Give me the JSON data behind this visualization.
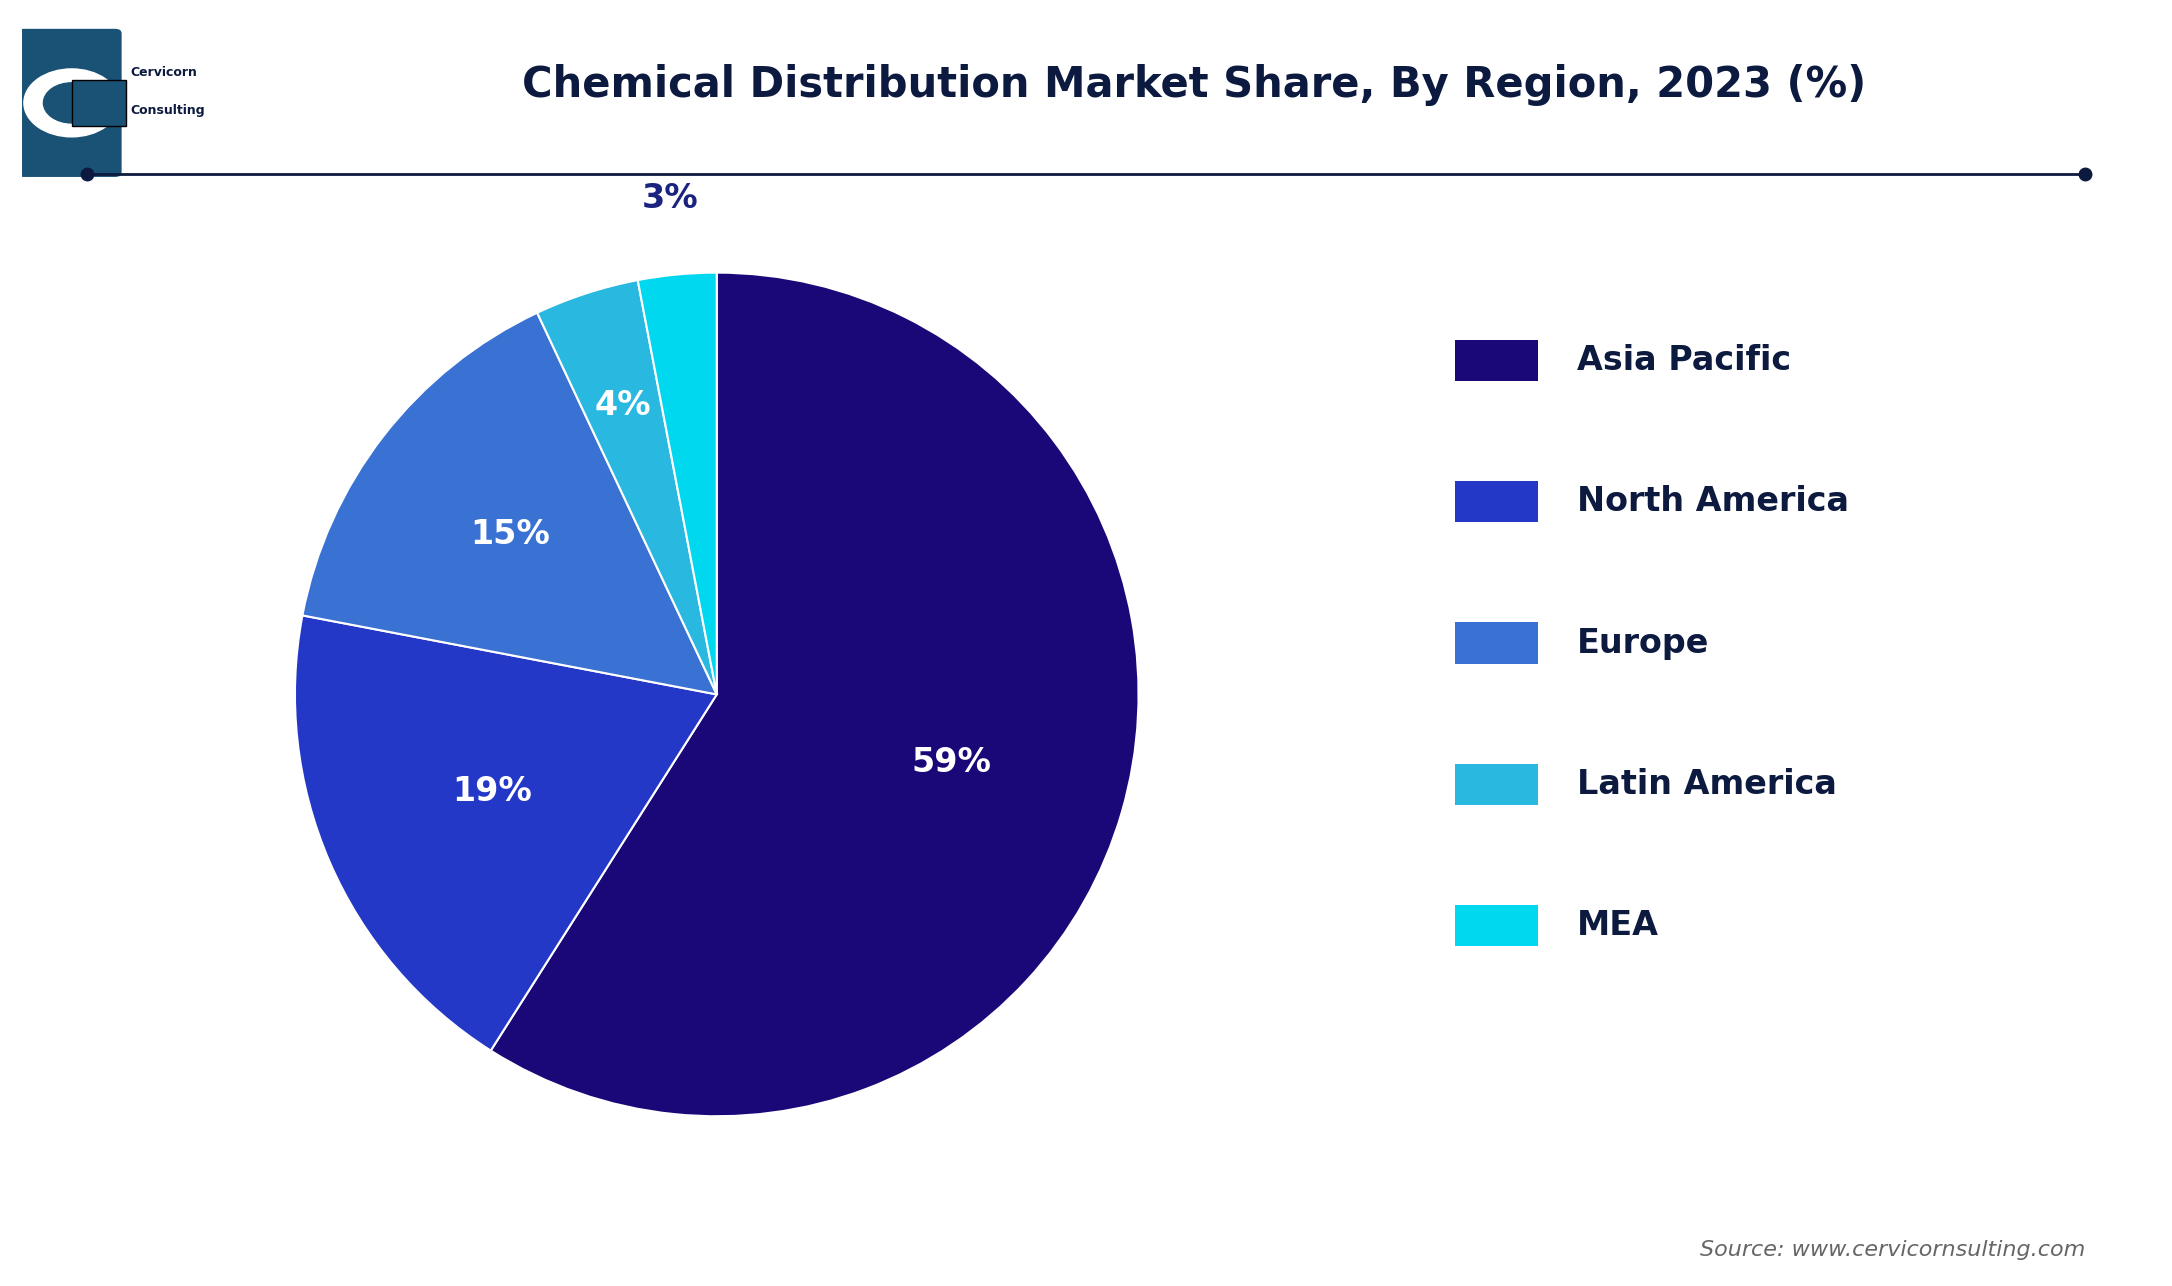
{
  "title": "Chemical Distribution Market Share, By Region, 2023 (%)",
  "title_fontsize": 30,
  "background_color": "#ffffff",
  "labels": [
    "Asia Pacific",
    "North America",
    "Europe",
    "Latin America",
    "MEA"
  ],
  "values": [
    59,
    19,
    15,
    4,
    3
  ],
  "colors": [
    "#1a0878",
    "#2438c8",
    "#3a72d4",
    "#29b8e0",
    "#00d8f0"
  ],
  "text_color_inside": "#ffffff",
  "text_color_outside": "#1a237e",
  "pct_fontsize": 24,
  "legend_fontsize": 24,
  "source_text": "Source: www.cervicornsulting.com",
  "source_fontsize": 16,
  "startangle": 90,
  "wedge_linewidth": 1.5,
  "wedge_linecolor": "#ffffff",
  "label_radii": [
    0.58,
    0.58,
    0.62,
    0.72,
    1.18
  ],
  "label_outside": [
    false,
    false,
    false,
    false,
    true
  ],
  "line_color": "#1a1a2e",
  "legend_text_color": "#0d1a40"
}
